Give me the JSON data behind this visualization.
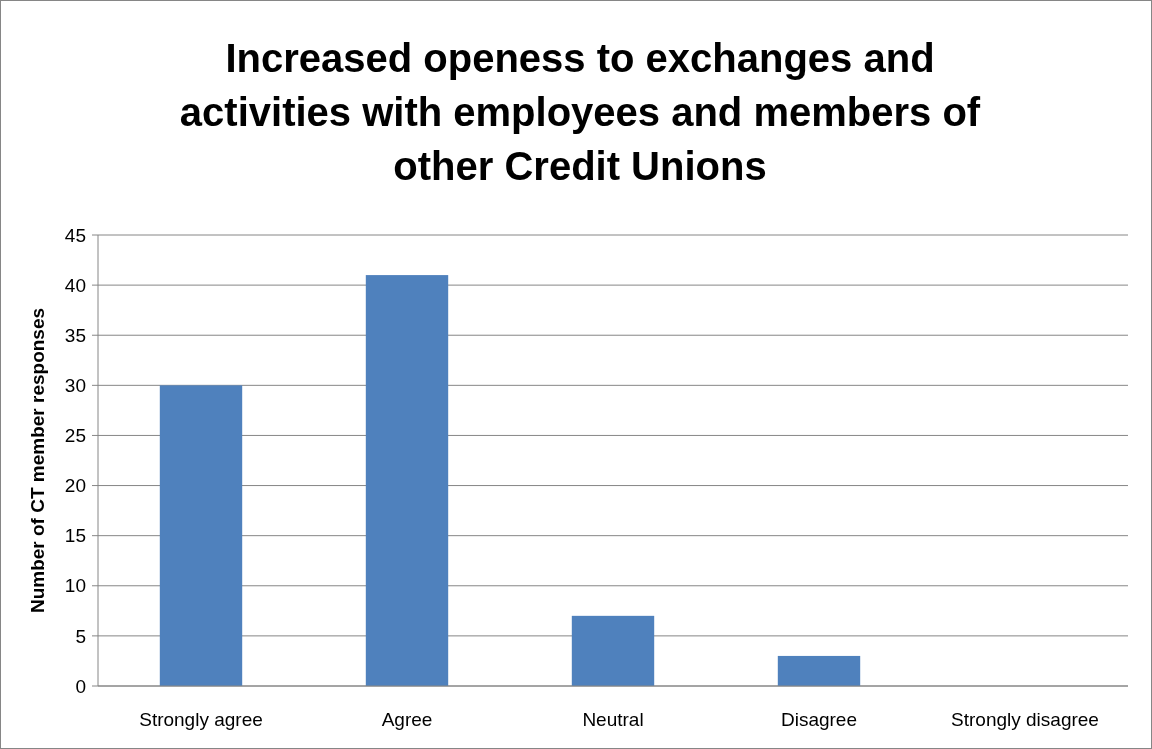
{
  "chart_data": {
    "type": "bar",
    "title": "Increased openess to exchanges and activities with employees and members of other Credit Unions",
    "ylabel": "Number of CT member responses",
    "categories": [
      "Strongly agree",
      "Agree",
      "Neutral",
      "Disagree",
      "Strongly disagree"
    ],
    "values": [
      30,
      41,
      7,
      3,
      0
    ],
    "color": "#4f81bd",
    "ylim": [
      0,
      45
    ],
    "yticks": [
      0,
      5,
      10,
      15,
      20,
      25,
      30,
      35,
      40,
      45
    ],
    "grid": "y"
  }
}
